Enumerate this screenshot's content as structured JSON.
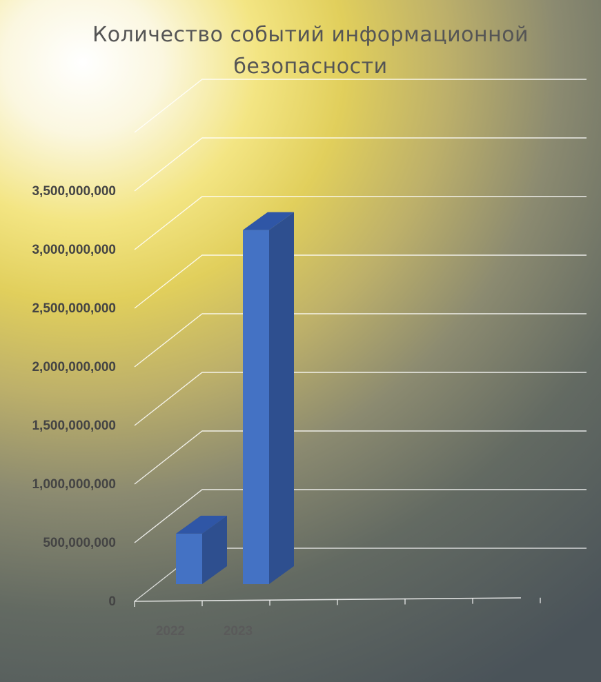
{
  "chart_data": {
    "type": "bar",
    "title": "Количество событий информационной безопасности",
    "categories": [
      "2022",
      "2023"
    ],
    "values": [
      430000000,
      3020000000
    ],
    "ylim": [
      0,
      4000000000
    ],
    "yticks": [
      0,
      500000000,
      1000000000,
      1500000000,
      2000000000,
      2500000000,
      3000000000,
      3500000000
    ],
    "ytick_labels": [
      "0",
      "500,000,000",
      "1,000,000,000",
      "1,500,000,000",
      "2,000,000,000",
      "2,500,000,000",
      "3,000,000,000",
      "3,500,000,000"
    ],
    "grid": true,
    "style": "3d-column",
    "colors": {
      "bar_front": "#4472c4",
      "bar_side": "#2e4f8f",
      "bar_top": "#2f56a6",
      "grid": "#ffffff"
    }
  }
}
